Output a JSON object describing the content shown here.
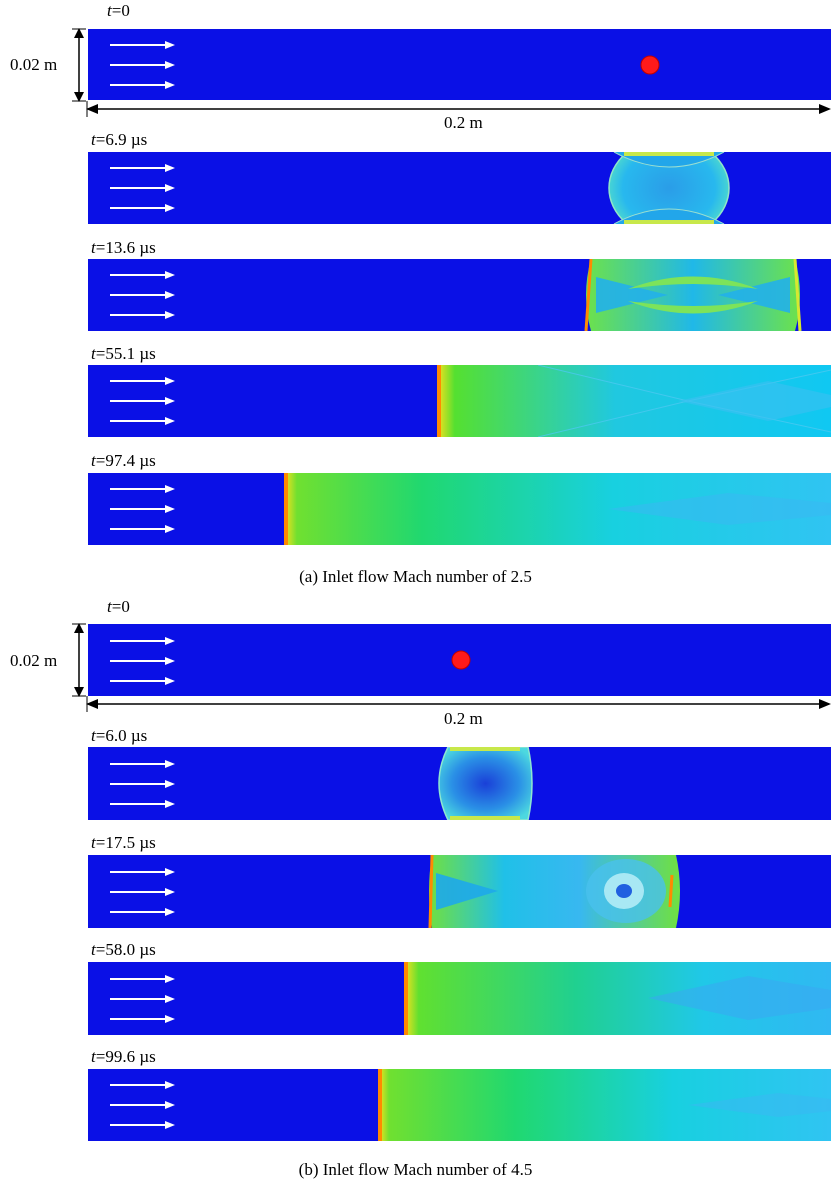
{
  "figure": {
    "subfigures": [
      {
        "caption": "(a) Inlet flow Mach number of 2.5",
        "height_label": "0.02 m",
        "length_label": "0.2 m",
        "panels": [
          {
            "t_var": "t",
            "t_value": "=0"
          },
          {
            "t_var": "t",
            "t_value": "=6.9 µs"
          },
          {
            "t_var": "t",
            "t_value": "=13.6 µs"
          },
          {
            "t_var": "t",
            "t_value": "=55.1 µs"
          },
          {
            "t_var": "t",
            "t_value": "=97.4 µs"
          }
        ]
      },
      {
        "caption": "(b) Inlet flow Mach number of 4.5",
        "height_label": "0.02 m",
        "length_label": "0.2 m",
        "panels": [
          {
            "t_var": "t",
            "t_value": "=0"
          },
          {
            "t_var": "t",
            "t_value": "=6.0 µs"
          },
          {
            "t_var": "t",
            "t_value": "=17.5 µs"
          },
          {
            "t_var": "t",
            "t_value": "=58.0 µs"
          },
          {
            "t_var": "t",
            "t_value": "=99.6 µs"
          }
        ]
      }
    ],
    "colors": {
      "background_flow": "#0a10e6",
      "arrow": "#ffffff",
      "droplet": "#ff1a1a",
      "shock_front": "#ff8a00"
    }
  }
}
